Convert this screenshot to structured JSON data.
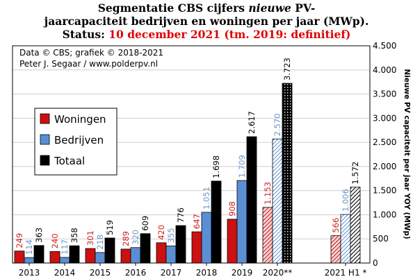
{
  "chart_data": {
    "type": "bar",
    "title_line1_pre": "Segmentatie CBS cijfers ",
    "title_line1_em": "nieuwe",
    "title_line1_post": " PV-",
    "title_line2": "jaarcapaciteit bedrijven en woningen per jaar (MWp).",
    "status_label": "Status: ",
    "status_value": "10 december 2021 (tm. 2019: definitief)",
    "credit_line1": "Data © CBS; grafiek © 2018-2021",
    "credit_line2": "Peter J. Segaar / www.polderpv.nl",
    "ylabel": "Nieuwe PV capaciteit per jaar YOY (MWp)",
    "xlabel": "",
    "ylim": [
      0,
      4500
    ],
    "yticks": [
      {
        "value": 0,
        "label": "0"
      },
      {
        "value": 500,
        "label": "500"
      },
      {
        "value": 1000,
        "label": "1.000"
      },
      {
        "value": 1500,
        "label": "1.500"
      },
      {
        "value": 2000,
        "label": "2.000"
      },
      {
        "value": 2500,
        "label": "2.500"
      },
      {
        "value": 3000,
        "label": "3.000"
      },
      {
        "value": 3500,
        "label": "3.500"
      },
      {
        "value": 4000,
        "label": "4.000"
      },
      {
        "value": 4500,
        "label": "4.500"
      }
    ],
    "grid": true,
    "legend_position": "left",
    "categories": [
      "2013",
      "2014",
      "2015",
      "2016",
      "2017",
      "2018",
      "2019",
      "2020**",
      "2021 H1 *"
    ],
    "hatched_categories": [
      "2020**",
      "2021 H1 *"
    ],
    "series": [
      {
        "name": "Woningen",
        "color": "#cc1111",
        "values": [
          249,
          240,
          301,
          289,
          420,
          647,
          908,
          1153,
          566
        ],
        "labels": [
          "249",
          "240",
          "301",
          "289",
          "420",
          "647",
          "908",
          "1.153",
          "566"
        ],
        "label_color": "#cc2222"
      },
      {
        "name": "Bedrijven",
        "color": "#5b8fd4",
        "values": [
          114,
          117,
          218,
          320,
          355,
          1051,
          1709,
          2570,
          1006
        ],
        "labels": [
          "114",
          "117",
          "218",
          "320",
          "355",
          "1.051",
          "1.709",
          "2.570",
          "1.006"
        ],
        "label_color": "#6a97c8"
      },
      {
        "name": "Totaal",
        "color": "#000000",
        "values": [
          363,
          358,
          519,
          609,
          776,
          1698,
          2617,
          3723,
          1572
        ],
        "labels": [
          "363",
          "358",
          "519",
          "609",
          "776",
          "1.698",
          "2.617",
          "3.723",
          "1.572"
        ],
        "label_color": "#000000"
      }
    ]
  }
}
